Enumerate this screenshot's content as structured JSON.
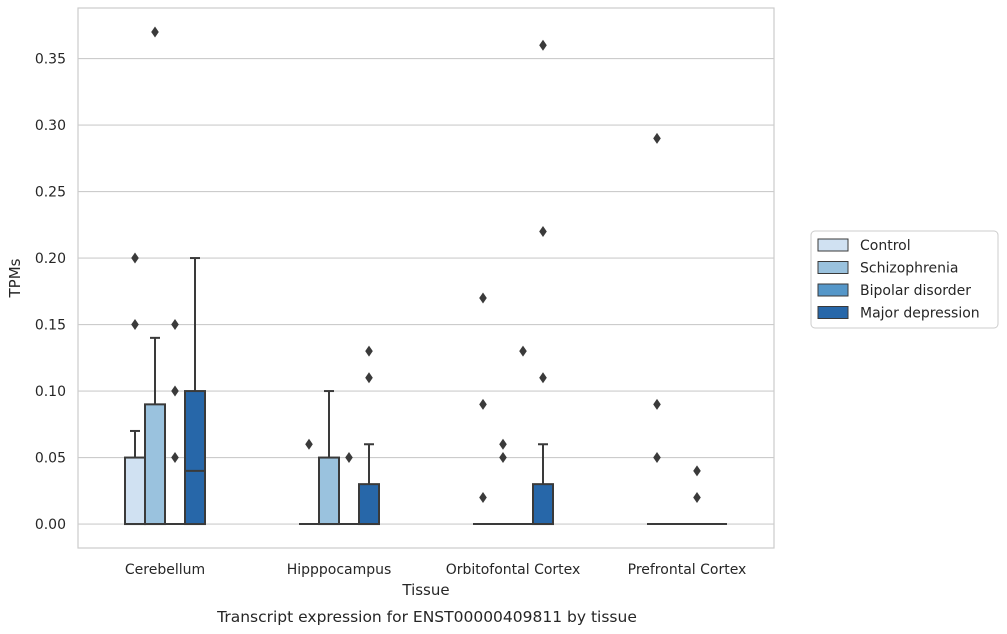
{
  "chart_data": {
    "type": "box",
    "xlabel": "Tissue",
    "ylabel": "TPMs",
    "caption": "Transcript expression for ENST00000409811 by tissue",
    "ylim": [
      -0.018,
      0.388
    ],
    "yticks": [
      0.0,
      0.05,
      0.1,
      0.15,
      0.2,
      0.25,
      0.3,
      0.35
    ],
    "ytick_labels": [
      "0.00",
      "0.05",
      "0.10",
      "0.15",
      "0.20",
      "0.25",
      "0.30",
      "0.35"
    ],
    "grid": "horizontal",
    "legend_position": "right",
    "categories": [
      "Cerebellum",
      "Hipppocampus",
      "Orbitofontal Cortex",
      "Prefrontal Cortex"
    ],
    "series": [
      {
        "name": "Control",
        "color": "#d0e1f2",
        "boxes": [
          {
            "q1": 0.0,
            "median": 0.0,
            "q3": 0.05,
            "whisker_low": 0.0,
            "whisker_high": 0.07,
            "outliers": [
              0.15,
              0.2
            ]
          },
          {
            "q1": 0.0,
            "median": 0.0,
            "q3": 0.0,
            "whisker_low": 0.0,
            "whisker_high": 0.0,
            "outliers": [
              0.06
            ]
          },
          {
            "q1": 0.0,
            "median": 0.0,
            "q3": 0.0,
            "whisker_low": 0.0,
            "whisker_high": 0.0,
            "outliers": [
              0.02,
              0.09,
              0.17
            ]
          },
          {
            "q1": 0.0,
            "median": 0.0,
            "q3": 0.0,
            "whisker_low": 0.0,
            "whisker_high": 0.0,
            "outliers": [
              0.05,
              0.09,
              0.29
            ]
          }
        ]
      },
      {
        "name": "Schizophrenia",
        "color": "#9ac2de",
        "boxes": [
          {
            "q1": 0.0,
            "median": 0.0,
            "q3": 0.09,
            "whisker_low": 0.0,
            "whisker_high": 0.14,
            "outliers": [
              0.37
            ]
          },
          {
            "q1": 0.0,
            "median": 0.0,
            "q3": 0.05,
            "whisker_low": 0.0,
            "whisker_high": 0.1,
            "outliers": []
          },
          {
            "q1": 0.0,
            "median": 0.0,
            "q3": 0.0,
            "whisker_low": 0.0,
            "whisker_high": 0.0,
            "outliers": [
              0.05,
              0.06
            ]
          },
          {
            "q1": 0.0,
            "median": 0.0,
            "q3": 0.0,
            "whisker_low": 0.0,
            "whisker_high": 0.0,
            "outliers": []
          }
        ]
      },
      {
        "name": "Bipolar disorder",
        "color": "#5597c9",
        "boxes": [
          {
            "q1": 0.0,
            "median": 0.0,
            "q3": 0.0,
            "whisker_low": 0.0,
            "whisker_high": 0.0,
            "outliers": [
              0.05,
              0.1,
              0.15
            ]
          },
          {
            "q1": 0.0,
            "median": 0.0,
            "q3": 0.0,
            "whisker_low": 0.0,
            "whisker_high": 0.0,
            "outliers": [
              0.05
            ]
          },
          {
            "q1": 0.0,
            "median": 0.0,
            "q3": 0.0,
            "whisker_low": 0.0,
            "whisker_high": 0.0,
            "outliers": [
              0.13
            ]
          },
          {
            "q1": 0.0,
            "median": 0.0,
            "q3": 0.0,
            "whisker_low": 0.0,
            "whisker_high": 0.0,
            "outliers": [
              0.02,
              0.04
            ]
          }
        ]
      },
      {
        "name": "Major depression",
        "color": "#2767a9",
        "boxes": [
          {
            "q1": 0.0,
            "median": 0.04,
            "q3": 0.1,
            "whisker_low": 0.0,
            "whisker_high": 0.2,
            "outliers": []
          },
          {
            "q1": 0.0,
            "median": 0.0,
            "q3": 0.03,
            "whisker_low": 0.0,
            "whisker_high": 0.06,
            "outliers": [
              0.11,
              0.13
            ]
          },
          {
            "q1": 0.0,
            "median": 0.0,
            "q3": 0.03,
            "whisker_low": 0.0,
            "whisker_high": 0.06,
            "outliers": [
              0.11,
              0.22,
              0.36
            ]
          },
          {
            "q1": 0.0,
            "median": 0.0,
            "q3": 0.0,
            "whisker_low": 0.0,
            "whisker_high": 0.0,
            "outliers": []
          }
        ]
      }
    ],
    "style": {
      "gridline_color": "#cccccc",
      "box_edge_color": "#3a3a3a",
      "outlier_color": "#3a3a3a",
      "frame_color": "#cccccc"
    }
  }
}
